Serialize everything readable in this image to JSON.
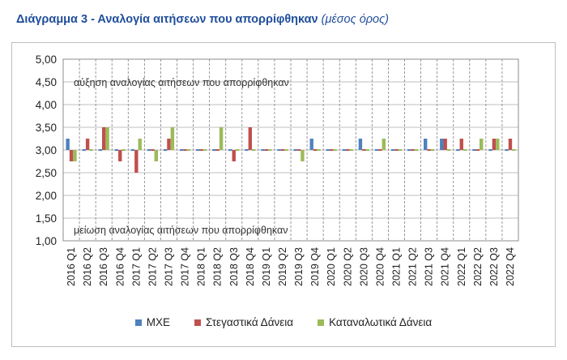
{
  "title": {
    "main": "Διάγραμμα 3 - Αναλογία αιτήσεων που απορρίφθηκαν",
    "sub": "(μέσος όρος)"
  },
  "colors": {
    "series": [
      "#4f81bd",
      "#c0504d",
      "#9bbb59"
    ]
  },
  "chart_data": {
    "type": "bar",
    "title": "Διάγραμμα 3 - Αναλογία αιτήσεων που απορρίφθηκαν (μέσος όρος)",
    "categories": [
      "2016 Q1",
      "2016 Q2",
      "2016 Q3",
      "2016 Q4",
      "2017 Q1",
      "2017 Q2",
      "2017 Q3",
      "2017 Q4",
      "2018 Q1",
      "2018 Q2",
      "2018 Q3",
      "2018 Q4",
      "2019 Q1",
      "2019 Q2",
      "2019 Q3",
      "2019 Q4",
      "2020 Q1",
      "2020 Q2",
      "2020 Q3",
      "2020 Q4",
      "2021 Q1",
      "2021 Q2",
      "2021 Q3",
      "2021 Q4",
      "2022 Q1",
      "2022 Q2",
      "2022 Q3",
      "2022 Q4"
    ],
    "series": [
      {
        "name": "ΜΧΕ",
        "values": [
          3.25,
          3.0,
          3.0,
          3.0,
          3.0,
          3.0,
          3.0,
          3.0,
          3.0,
          3.0,
          3.0,
          3.0,
          3.0,
          3.0,
          3.0,
          3.25,
          3.0,
          3.0,
          3.25,
          3.0,
          3.0,
          3.0,
          3.25,
          3.25,
          3.0,
          3.0,
          3.0,
          3.0
        ]
      },
      {
        "name": "Στεγαστικά Δάνεια",
        "values": [
          2.75,
          3.25,
          3.5,
          2.75,
          2.5,
          3.0,
          3.25,
          3.0,
          3.0,
          3.0,
          2.75,
          3.5,
          3.0,
          3.0,
          3.0,
          3.0,
          3.0,
          3.0,
          3.0,
          3.0,
          3.0,
          3.0,
          3.0,
          3.25,
          3.25,
          3.0,
          3.25,
          3.25
        ]
      },
      {
        "name": "Καταναλωτικά Δάνεια",
        "values": [
          2.75,
          3.0,
          3.5,
          3.0,
          3.25,
          2.75,
          3.5,
          3.0,
          3.0,
          3.5,
          3.0,
          3.0,
          3.0,
          3.0,
          2.75,
          3.0,
          3.0,
          3.0,
          3.0,
          3.25,
          3.0,
          3.0,
          3.0,
          3.0,
          3.0,
          3.25,
          3.25,
          3.0
        ]
      }
    ],
    "ylim": [
      1.0,
      5.0
    ],
    "ytick_step": 0.5,
    "ytick_labels": [
      "1,00",
      "1,50",
      "2,00",
      "2,50",
      "3,00",
      "3,50",
      "4,00",
      "4,50",
      "5,00"
    ],
    "baseline": 3.0,
    "annotations": {
      "top": "αύξηση αναλογίας αιτήσεων που απορρίφθηκαν",
      "bottom": "μείωση αναλογίας αιτήσεων που απορρίφθηκαν"
    },
    "grid": "horizontal solid, vertical dashed",
    "legend_position": "bottom"
  }
}
